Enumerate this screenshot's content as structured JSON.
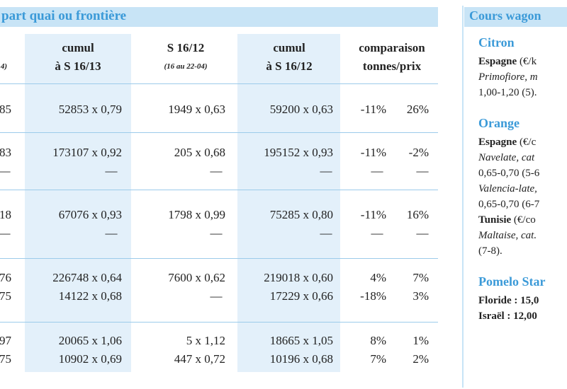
{
  "header": {
    "title": "part quai ou frontière"
  },
  "table": {
    "columns": [
      {
        "lines": [
          "4)"
        ]
      },
      {
        "lines": [
          "cumul",
          "à S 16/13"
        ]
      },
      {
        "lines": [
          "S 16/12",
          "(16 au 22-04)"
        ]
      },
      {
        "lines": [
          "cumul",
          "à S 16/12"
        ]
      },
      {
        "lines": [
          "comparaison",
          "tonnes/prix"
        ]
      }
    ],
    "rows": [
      [
        [
          "85",
          "52853 x 0,79",
          "1949 x 0,63",
          "59200 x 0,63",
          "-11%",
          "26%"
        ]
      ],
      [
        [
          "83",
          "173107 x 0,92",
          "205 x 0,68",
          "195152 x 0,93",
          "-11%",
          "-2%"
        ],
        [
          "—",
          "—",
          "—",
          "—",
          "—",
          "—"
        ]
      ],
      [
        [
          "18",
          "67076 x 0,93",
          "1798 x 0,99",
          "75285 x 0,80",
          "-11%",
          "16%"
        ],
        [
          "—",
          "—",
          "—",
          "—",
          "—",
          "—"
        ]
      ],
      [
        [
          "76",
          "226748 x 0,64",
          "7600 x 0,62",
          "219018 x 0,60",
          "4%",
          "7%"
        ],
        [
          "75",
          "14122 x 0,68",
          "—",
          "17229 x 0,66",
          "-18%",
          "3%"
        ]
      ],
      [
        [
          "97",
          "20065 x 1,06",
          "5 x 1,12",
          "18665 x 1,05",
          "8%",
          "1%"
        ],
        [
          "75",
          "10902 x 0,69",
          "447 x 0,72",
          "10196 x 0,68",
          "7%",
          "2%"
        ]
      ]
    ]
  },
  "side": {
    "title": "Cours wagon",
    "sections": [
      {
        "heading": "Citron",
        "lines": [
          [
            {
              "t": "Espagne",
              "b": true
            },
            {
              "t": " (€/k"
            }
          ],
          [
            {
              "t": "Primofiore, m",
              "i": true
            }
          ],
          [
            {
              "t": "1,00-1,20 (5)."
            }
          ]
        ]
      },
      {
        "heading": "Orange",
        "lines": [
          [
            {
              "t": "Espagne",
              "b": true
            },
            {
              "t": " (€/c"
            }
          ],
          [
            {
              "t": "Navelate, cat",
              "i": true
            }
          ],
          [
            {
              "t": "0,65-0,70 (5-6"
            }
          ],
          [
            {
              "t": "Valencia-late,",
              "i": true
            }
          ],
          [
            {
              "t": "0,65-0,70 (6-7"
            }
          ],
          [
            {
              "t": "Tunisie",
              "b": true
            },
            {
              "t": " (€/co"
            }
          ],
          [
            {
              "t": "Maltaise, cat.",
              "i": true
            }
          ],
          [
            {
              "t": "(7-8)."
            }
          ]
        ]
      },
      {
        "heading": "Pomelo Star",
        "lines": [
          [
            {
              "t": "Floride : 15,0",
              "b": true
            }
          ],
          [
            {
              "t": "Israël : 12,00",
              "b": true
            }
          ]
        ]
      }
    ]
  }
}
